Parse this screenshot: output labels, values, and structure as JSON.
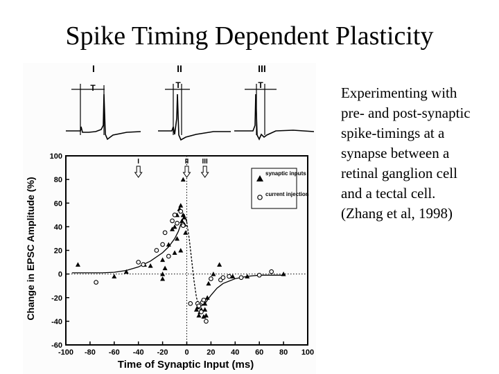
{
  "slide": {
    "title": "Spike Timing Dependent Plasticity",
    "caption_lines": [
      "Experimenting with",
      "pre- and post-synaptic",
      "spike-timings at a",
      "synapse between a",
      "retinal ganglion cell",
      "and a tectal cell.",
      "(Zhang et al, 1998)"
    ]
  },
  "traces": {
    "labels": [
      "I",
      "II",
      "III"
    ],
    "t_label": "T"
  },
  "chart_data": {
    "type": "scatter",
    "title": "",
    "xlabel": "Time of Synaptic Input (ms)",
    "ylabel": "Change in EPSC Amplitude (%)",
    "xlim": [
      -100,
      100
    ],
    "ylim": [
      -60,
      100
    ],
    "xticks": [
      -100,
      -80,
      -60,
      -40,
      -20,
      0,
      20,
      40,
      60,
      80,
      100
    ],
    "yticks": [
      -60,
      -40,
      -20,
      0,
      20,
      40,
      60,
      80,
      100
    ],
    "legend_position": "top-right",
    "markers": [
      {
        "label": "I",
        "x": -40
      },
      {
        "label": "II",
        "x": 0
      },
      {
        "label": "III",
        "x": 15
      }
    ],
    "series": [
      {
        "name": "synaptic inputs",
        "marker": "filled-triangle",
        "points": [
          [
            -90,
            8
          ],
          [
            -60,
            -2
          ],
          [
            -50,
            2
          ],
          [
            -35,
            8
          ],
          [
            -30,
            7
          ],
          [
            -20,
            12
          ],
          [
            -20,
            0
          ],
          [
            -18,
            5
          ],
          [
            -15,
            25
          ],
          [
            -12,
            38
          ],
          [
            -10,
            40
          ],
          [
            -10,
            18
          ],
          [
            -8,
            50
          ],
          [
            -8,
            30
          ],
          [
            -6,
            55
          ],
          [
            -5,
            58
          ],
          [
            -5,
            20
          ],
          [
            -4,
            45
          ],
          [
            -3,
            80
          ],
          [
            -3,
            50
          ],
          [
            -2,
            48
          ],
          [
            -2,
            42
          ],
          [
            -1,
            35
          ],
          [
            -20,
            -4
          ],
          [
            8,
            -30
          ],
          [
            9,
            -28
          ],
          [
            10,
            -35
          ],
          [
            11,
            -32
          ],
          [
            12,
            -30
          ],
          [
            14,
            -36
          ],
          [
            15,
            -25
          ],
          [
            15,
            -30
          ],
          [
            16,
            -35
          ],
          [
            17,
            -20
          ],
          [
            18,
            -8
          ],
          [
            22,
            0
          ],
          [
            27,
            8
          ],
          [
            38,
            -2
          ],
          [
            50,
            -2
          ],
          [
            80,
            0
          ]
        ]
      },
      {
        "name": "current injection",
        "marker": "open-circle",
        "points": [
          [
            -75,
            -7
          ],
          [
            -40,
            10
          ],
          [
            -36,
            8
          ],
          [
            -25,
            20
          ],
          [
            -20,
            25
          ],
          [
            -18,
            35
          ],
          [
            -15,
            15
          ],
          [
            -12,
            45
          ],
          [
            -10,
            50
          ],
          [
            -8,
            43
          ],
          [
            -5,
            53
          ],
          [
            -3,
            41
          ],
          [
            3,
            -25
          ],
          [
            9,
            -25
          ],
          [
            10,
            -27
          ],
          [
            12,
            -32
          ],
          [
            13,
            -24
          ],
          [
            14,
            -22
          ],
          [
            16,
            -40
          ],
          [
            20,
            -4
          ],
          [
            28,
            -5
          ],
          [
            30,
            -3
          ],
          [
            35,
            -2
          ],
          [
            45,
            -3
          ],
          [
            60,
            -1
          ],
          [
            70,
            2
          ]
        ]
      }
    ],
    "fit_curve": [
      [
        -95,
        1
      ],
      [
        -70,
        1
      ],
      [
        -60,
        1.5
      ],
      [
        -50,
        3
      ],
      [
        -40,
        6
      ],
      [
        -30,
        11
      ],
      [
        -20,
        18
      ],
      [
        -15,
        23
      ],
      [
        -10,
        30
      ],
      [
        -7,
        36
      ],
      [
        -5,
        42
      ],
      [
        -2,
        50
      ],
      [
        0,
        44
      ],
      [
        2,
        30
      ],
      [
        4,
        12
      ],
      [
        6,
        -6
      ],
      [
        8,
        -20
      ],
      [
        10,
        -26
      ],
      [
        12,
        -27
      ],
      [
        15,
        -25
      ],
      [
        20,
        -18
      ],
      [
        25,
        -12
      ],
      [
        30,
        -8
      ],
      [
        40,
        -4
      ],
      [
        50,
        -2
      ],
      [
        60,
        -1
      ],
      [
        80,
        -1
      ]
    ]
  }
}
